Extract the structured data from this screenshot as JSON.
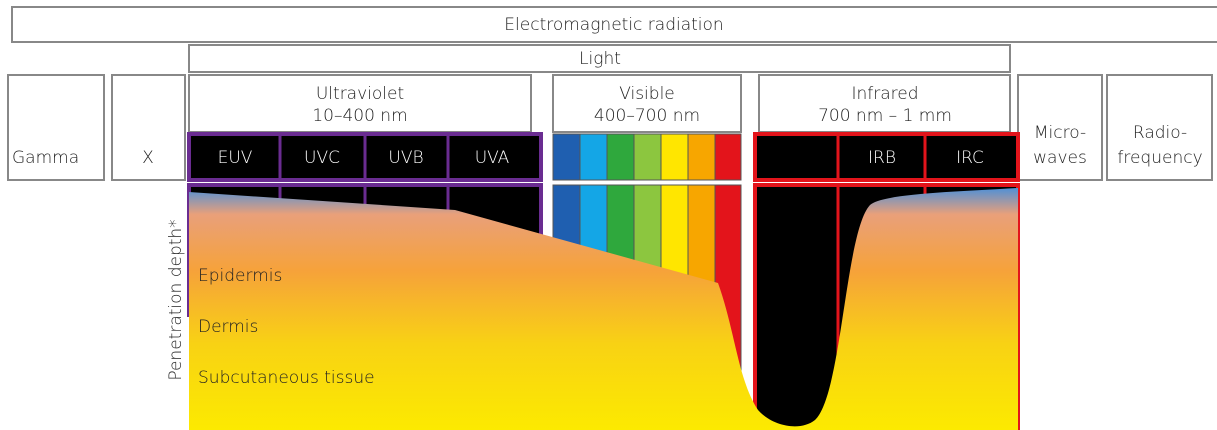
{
  "header": {
    "title": "Electromagnetic radiation"
  },
  "light": {
    "title": "Light"
  },
  "gamma": {
    "label": "Gamma"
  },
  "xray": {
    "label": "X"
  },
  "ultraviolet": {
    "label": "Ultraviolet",
    "range": "10–400 nm",
    "bands": [
      "EUV",
      "UVC",
      "UVB",
      "UVA"
    ]
  },
  "visible": {
    "label": "Visible",
    "range": "400–700 nm"
  },
  "infrared": {
    "label": "Infrared",
    "range": "700 nm – 1 mm",
    "bands": [
      "IRB",
      "IRC"
    ]
  },
  "microwaves": {
    "lines": [
      "Micro-",
      "waves"
    ]
  },
  "radiofrequency": {
    "lines": [
      "Radio-",
      "frequency"
    ]
  },
  "penetration": {
    "axis_label": "Penetration depth*",
    "layers": [
      "Epidermis",
      "Dermis",
      "Subcutaneous tissue"
    ]
  }
}
